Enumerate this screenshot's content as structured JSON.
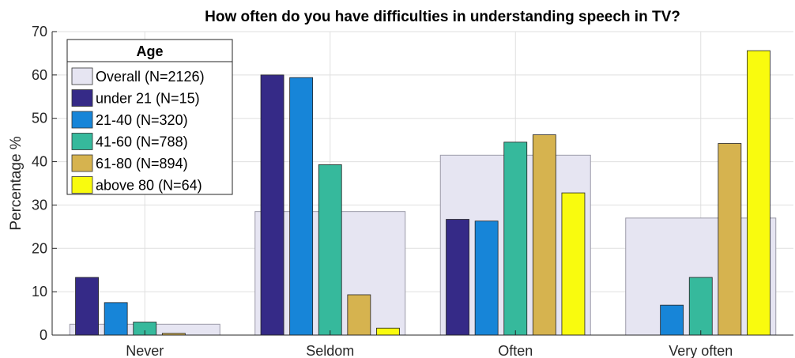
{
  "chart_data": {
    "type": "bar",
    "title": "How often do you have difficulties in understanding speech in TV?",
    "xlabel": "",
    "ylabel": "Percentage %",
    "ylim": [
      0,
      70
    ],
    "yticks": [
      "0",
      "10",
      "20",
      "30",
      "40",
      "50",
      "60",
      "70"
    ],
    "grid": true,
    "legend_title": "Age",
    "legend_position": "top-left",
    "categories": [
      "Never",
      "Seldom",
      "Often",
      "Very often"
    ],
    "overall": {
      "name": "Overall (N=2126)",
      "color": "#e6e5f2",
      "values": [
        2.5,
        28.5,
        41.5,
        27.0
      ]
    },
    "series": [
      {
        "name": "under 21 (N=15)",
        "color": "#352a87",
        "values": [
          13.3,
          60.0,
          26.7,
          0.0
        ]
      },
      {
        "name": "21-40 (N=320)",
        "color": "#1785d8",
        "values": [
          7.5,
          59.4,
          26.3,
          6.9
        ]
      },
      {
        "name": "41-60 (N=788)",
        "color": "#36b99c",
        "values": [
          3.0,
          39.3,
          44.5,
          13.3
        ]
      },
      {
        "name": "61-80 (N=894)",
        "color": "#d6b34f",
        "values": [
          0.4,
          9.3,
          46.2,
          44.2
        ]
      },
      {
        "name": "above 80 (N=64)",
        "color": "#f9fb0e",
        "values": [
          0.0,
          1.6,
          32.8,
          65.6
        ]
      }
    ]
  }
}
